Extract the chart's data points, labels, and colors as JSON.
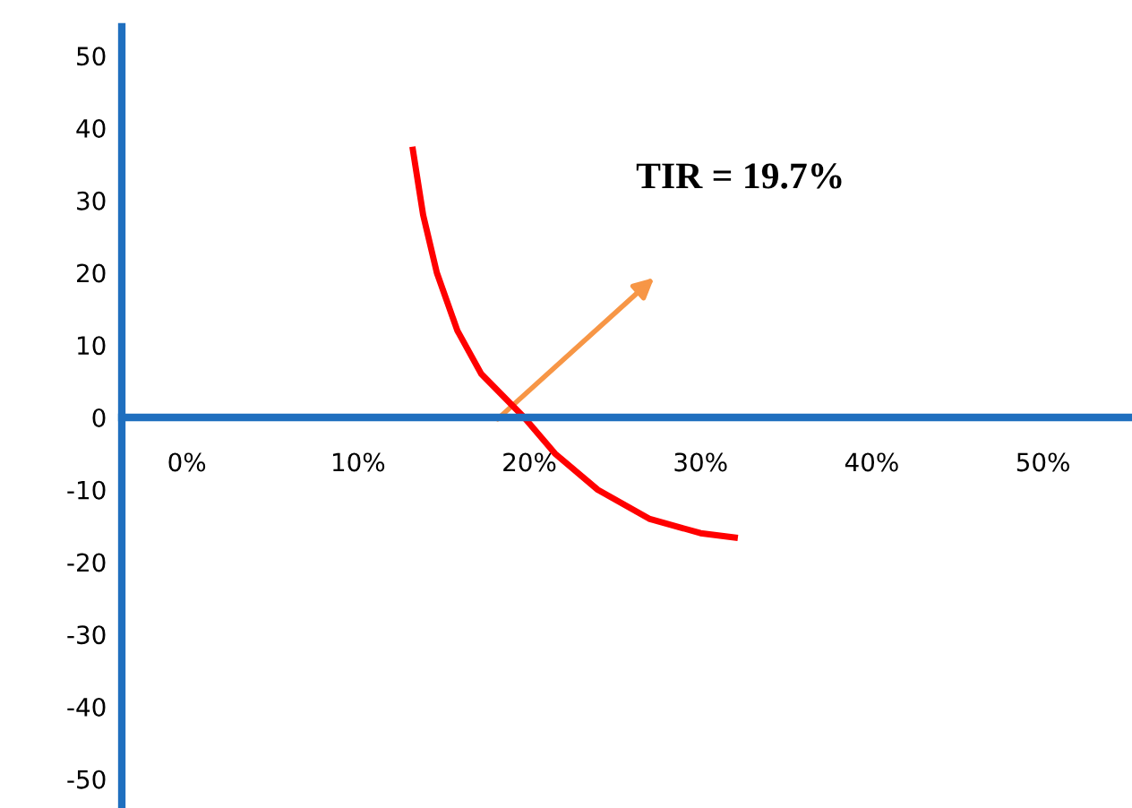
{
  "chart_data": {
    "type": "line",
    "x": [
      13.2,
      13.8,
      14.6,
      15.8,
      17.2,
      19.7,
      21.5,
      24,
      27,
      30,
      32
    ],
    "series": [
      {
        "color": "#ff0000",
        "values": [
          37,
          28,
          20,
          12,
          6,
          0,
          -5,
          -10,
          -14,
          -16,
          -16.6
        ]
      }
    ],
    "xlim": [
      -3.8,
      55.2
    ],
    "ylim": [
      -54,
      54
    ],
    "xticks": [
      {
        "value": 0,
        "label": "0%"
      },
      {
        "value": 10,
        "label": "10%"
      },
      {
        "value": 20,
        "label": "20%"
      },
      {
        "value": 30,
        "label": "30%"
      },
      {
        "value": 40,
        "label": "40%"
      },
      {
        "value": 50,
        "label": "50%"
      }
    ],
    "yticks": [
      -50,
      -40,
      -30,
      -20,
      -10,
      0,
      10,
      20,
      30,
      40,
      50
    ],
    "annotations": [
      "TIR = 19.7%"
    ],
    "grid": false,
    "marker": "none",
    "line_style": "solid"
  }
}
